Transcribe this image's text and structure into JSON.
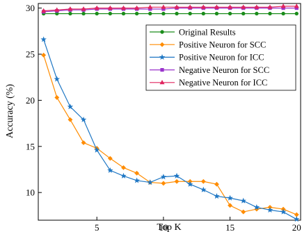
{
  "chart_data": {
    "type": "line",
    "xlabel": "Top K",
    "ylabel": "Accuracy (%)",
    "xlim": [
      0.6,
      20.3
    ],
    "ylim": [
      7,
      30.5
    ],
    "x_ticks": [
      5,
      10,
      15,
      20
    ],
    "y_ticks": [
      10,
      15,
      20,
      25,
      30
    ],
    "legend_position": "top-right",
    "grid": false,
    "x": [
      1,
      2,
      3,
      4,
      5,
      6,
      7,
      8,
      9,
      10,
      11,
      12,
      13,
      14,
      15,
      16,
      17,
      18,
      19,
      20
    ],
    "series": [
      {
        "name": "Original Results",
        "color": "#1a8c1a",
        "marker": "circle",
        "values": [
          29.4,
          29.4,
          29.4,
          29.4,
          29.4,
          29.4,
          29.4,
          29.4,
          29.4,
          29.4,
          29.4,
          29.4,
          29.4,
          29.4,
          29.4,
          29.4,
          29.4,
          29.4,
          29.4,
          29.4
        ]
      },
      {
        "name": "Positive Neuron for SCC",
        "color": "#ff8c00",
        "marker": "diamond",
        "values": [
          24.9,
          20.3,
          17.9,
          15.4,
          14.8,
          13.7,
          12.7,
          12.1,
          11.1,
          11.0,
          11.2,
          11.2,
          11.2,
          10.9,
          8.6,
          7.9,
          8.2,
          8.4,
          8.2,
          7.6
        ]
      },
      {
        "name": "Positive Neuron for ICC",
        "color": "#1f77c4",
        "marker": "star",
        "values": [
          26.6,
          22.3,
          19.3,
          17.9,
          14.6,
          12.4,
          11.8,
          11.3,
          11.1,
          11.7,
          11.8,
          10.9,
          10.3,
          9.6,
          9.4,
          9.1,
          8.4,
          8.1,
          7.9,
          7.1
        ]
      },
      {
        "name": "Negative Neuron for SCC",
        "color": "#9933cc",
        "marker": "square",
        "values": [
          29.6,
          29.7,
          29.8,
          29.8,
          29.9,
          29.9,
          29.9,
          29.9,
          29.9,
          29.9,
          30.0,
          30.0,
          30.0,
          30.0,
          30.0,
          30.0,
          30.0,
          30.0,
          30.0,
          30.0
        ]
      },
      {
        "name": "Negative Neuron for ICC",
        "color": "#e0245e",
        "marker": "triangle",
        "values": [
          29.7,
          29.8,
          29.9,
          29.9,
          30.0,
          30.0,
          30.0,
          30.0,
          30.1,
          30.1,
          30.1,
          30.1,
          30.1,
          30.1,
          30.1,
          30.1,
          30.1,
          30.1,
          30.2,
          30.2
        ]
      }
    ]
  }
}
